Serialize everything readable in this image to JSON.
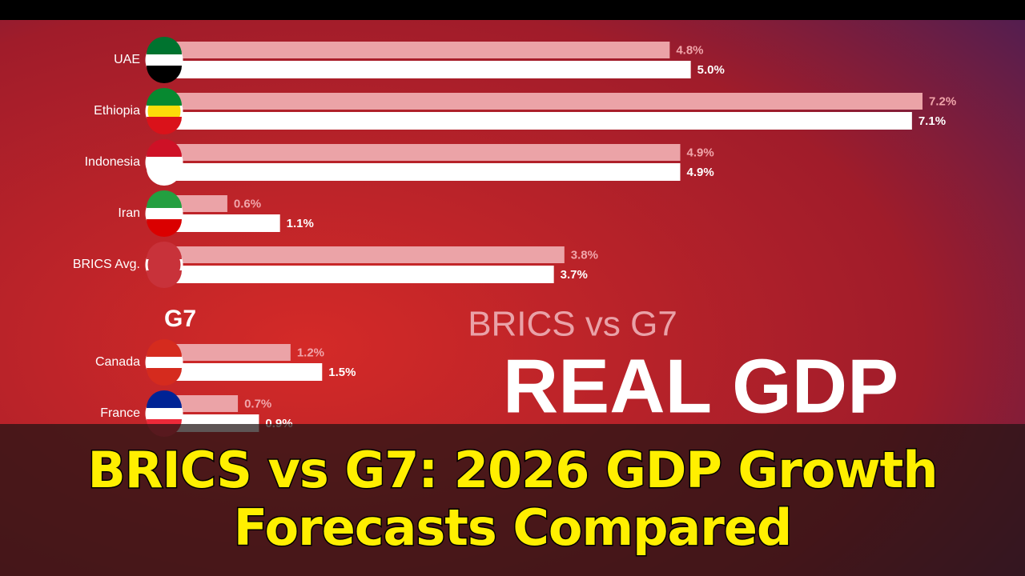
{
  "chart_data": [
    {
      "type": "bar",
      "categories": [
        "UAE",
        "Ethiopia",
        "Indonesia",
        "Iran",
        "BRICS Avg."
      ],
      "series": [
        {
          "color": "#eba3a7",
          "values": [
            4.8,
            7.2,
            4.9,
            0.6,
            3.8
          ],
          "value_labels": [
            "4.8%",
            "7.2%",
            "4.9%",
            "0.6%",
            "3.8%"
          ]
        },
        {
          "color": "#ffffff",
          "values": [
            5.0,
            7.1,
            4.9,
            1.1,
            3.7
          ],
          "value_labels": [
            "5.0%",
            "7.1%",
            "4.9%",
            "1.1%",
            "3.7%"
          ]
        }
      ]
    },
    {
      "type": "bar",
      "title": "G7",
      "categories": [
        "Canada",
        "France"
      ],
      "series": [
        {
          "color": "#eba3a7",
          "values": [
            1.2,
            0.7
          ],
          "value_labels": [
            "1.2%",
            "0.7%"
          ]
        },
        {
          "color": "#ffffff",
          "values": [
            1.5,
            0.9
          ],
          "value_labels": [
            "1.5%",
            "0.9%"
          ]
        }
      ]
    }
  ],
  "background_text": {
    "subtitle": "BRICS vs G7",
    "headline": "REAL GDP"
  },
  "caption": [
    "BRICS vs G7: 2026 GDP Growth",
    "Forecasts Compared"
  ]
}
